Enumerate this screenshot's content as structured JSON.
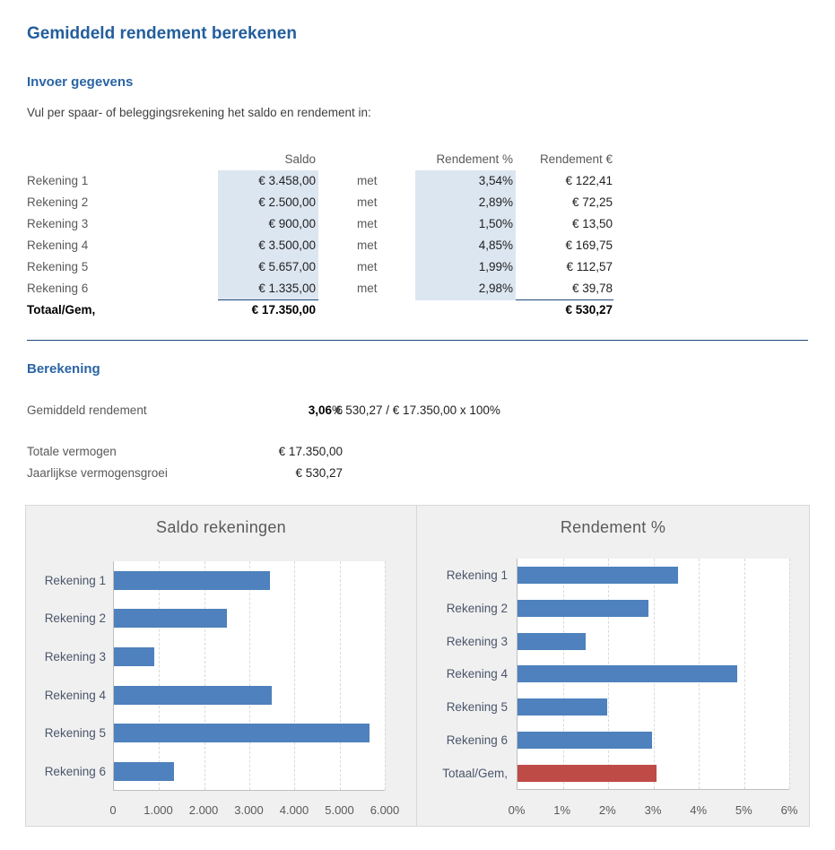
{
  "page_title": "Gemiddeld rendement berekenen",
  "colors": {
    "title_blue": "#235e9d",
    "heading_blue": "#2a64a5",
    "divider_blue": "#1f497d",
    "input_cell_bg": "#dce6f1",
    "bar_blue": "#4e81bd",
    "bar_red": "#bf4b47",
    "muted_gray": "#595959"
  },
  "input_section": {
    "heading": "Invoer gegevens",
    "instruction": "Vul per spaar- of beleggingsrekening het saldo en rendement in:",
    "table": {
      "col_headers": {
        "saldo": "Saldo",
        "pct": "Rendement %",
        "eur": "Rendement €"
      },
      "rows": [
        {
          "label": "Rekening 1",
          "saldo": "€ 3.458,00",
          "met": "met",
          "pct": "3,54%",
          "eur": "€ 122,41"
        },
        {
          "label": "Rekening 2",
          "saldo": "€ 2.500,00",
          "met": "met",
          "pct": "2,89%",
          "eur": "€ 72,25"
        },
        {
          "label": "Rekening 3",
          "saldo": "€ 900,00",
          "met": "met",
          "pct": "1,50%",
          "eur": "€ 13,50"
        },
        {
          "label": "Rekening 4",
          "saldo": "€ 3.500,00",
          "met": "met",
          "pct": "4,85%",
          "eur": "€ 169,75"
        },
        {
          "label": "Rekening 5",
          "saldo": "€ 5.657,00",
          "met": "met",
          "pct": "1,99%",
          "eur": "€ 112,57"
        },
        {
          "label": "Rekening 6",
          "saldo": "€ 1.335,00",
          "met": "met",
          "pct": "2,98%",
          "eur": "€ 39,78"
        }
      ],
      "total_row": {
        "label": "Totaal/Gem,",
        "saldo": "€ 17.350,00",
        "eur": "€ 530,27"
      }
    }
  },
  "calculation_section": {
    "heading": "Berekening",
    "gemiddeld_rendement": {
      "label": "Gemiddeld rendement",
      "value": "3,06",
      "unit": "%",
      "formula": "€ 530,27 / € 17.350,00 x 100%"
    },
    "totale_vermogen": {
      "label": "Totale vermogen",
      "value": "€ 17.350,00"
    },
    "jaarlijkse_vermogensgroei": {
      "label": "Jaarlijkse vermogensgroei",
      "value": "€ 530,27"
    }
  },
  "chart_data": [
    {
      "type": "bar",
      "orientation": "horizontal",
      "title": "Saldo rekeningen",
      "categories": [
        "Rekening 1",
        "Rekening 2",
        "Rekening 3",
        "Rekening 4",
        "Rekening 5",
        "Rekening 6"
      ],
      "values": [
        3458,
        2500,
        900,
        3500,
        5657,
        1335
      ],
      "xlim": [
        0,
        6000
      ],
      "xtick_labels": [
        "0",
        "1.000",
        "2.000",
        "3.000",
        "4.000",
        "5.000",
        "6.000"
      ],
      "bar_color": "#4e81bd",
      "grid": true,
      "legend": "none"
    },
    {
      "type": "bar",
      "orientation": "horizontal",
      "title": "Rendement %",
      "categories": [
        "Rekening 1",
        "Rekening 2",
        "Rekening 3",
        "Rekening 4",
        "Rekening 5",
        "Rekening 6",
        "Totaal/Gem,"
      ],
      "values": [
        3.54,
        2.89,
        1.5,
        4.85,
        1.99,
        2.98,
        3.06
      ],
      "xlim": [
        0,
        6
      ],
      "xtick_labels": [
        "0%",
        "1%",
        "2%",
        "3%",
        "4%",
        "5%",
        "6%"
      ],
      "bar_color": "#4e81bd",
      "bar_colors": [
        null,
        null,
        null,
        null,
        null,
        null,
        "#bf4b47"
      ],
      "grid": true,
      "legend": "none"
    }
  ]
}
